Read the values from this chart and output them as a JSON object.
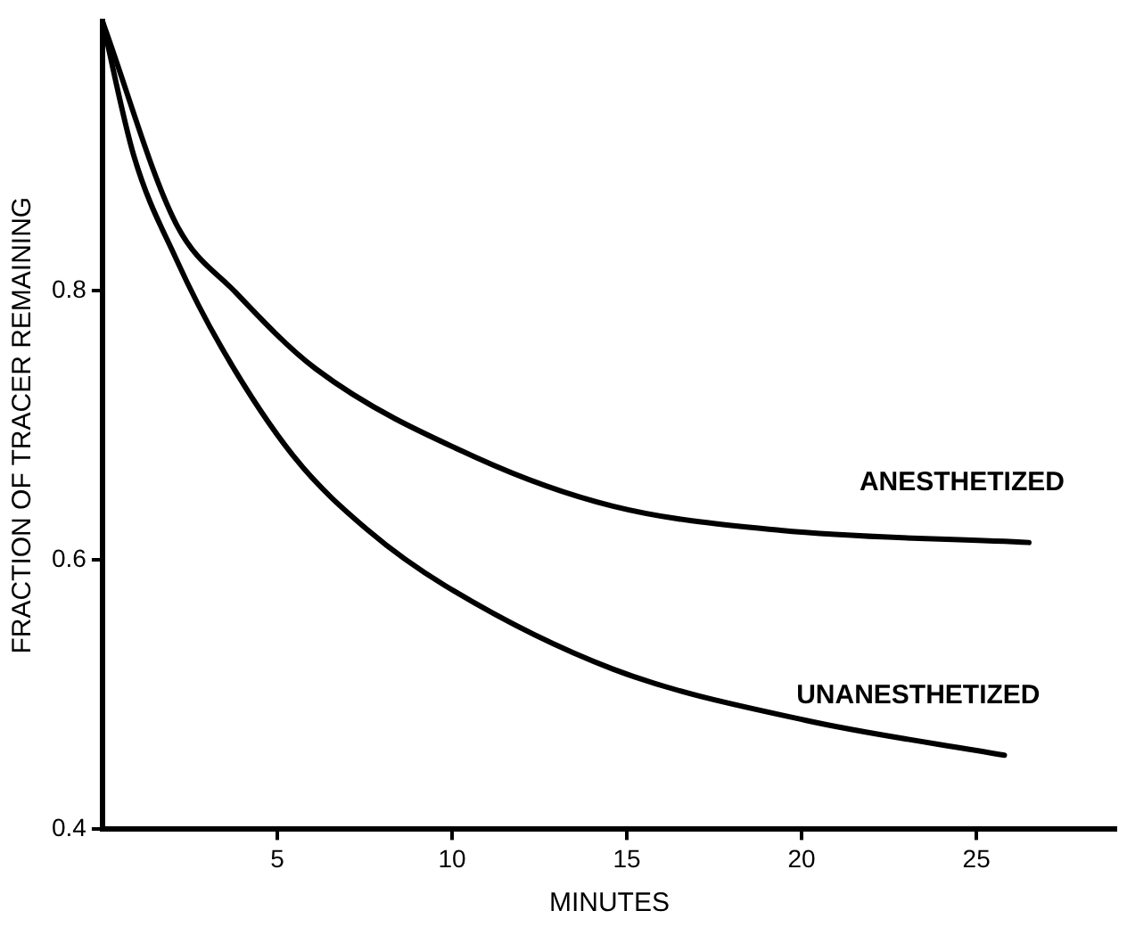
{
  "chart_data": {
    "type": "line",
    "xlabel": "MINUTES",
    "ylabel": "FRACTION OF TRACER REMAINING",
    "xlim": [
      0,
      29
    ],
    "xticks": [
      5,
      10,
      15,
      20,
      25
    ],
    "ylim": [
      0.4,
      1.0
    ],
    "yticks": [
      0.4,
      0.6,
      0.8
    ],
    "grid": false,
    "legend": false,
    "marker": "none",
    "line_style": "solid",
    "series": [
      {
        "name": "ANESTHETIZED",
        "color": "#000000",
        "x": [
          0,
          2.1,
          3.8,
          6.1,
          10.7,
          14.6,
          19.4,
          26.5
        ],
        "values": [
          1.0,
          0.85,
          0.799,
          0.742,
          0.676,
          0.64,
          0.622,
          0.613
        ]
      },
      {
        "name": "UNANESTHETIZED",
        "color": "#000000",
        "x": [
          0,
          0.9,
          2.1,
          3.4,
          5.5,
          7.6,
          9.8,
          14.6,
          20.1,
          25.8
        ],
        "values": [
          1.0,
          0.9,
          0.824,
          0.758,
          0.676,
          0.622,
          0.581,
          0.519,
          0.481,
          0.455
        ]
      }
    ]
  }
}
